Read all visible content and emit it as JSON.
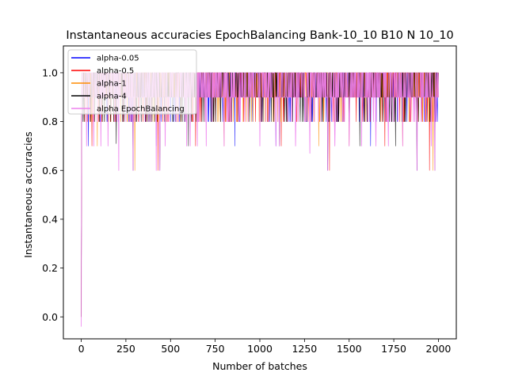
{
  "chart_data": {
    "type": "line",
    "title": "Instantaneous accuracies EpochBalancing Bank-10_10 B10 N 10_10",
    "xlabel": "Number of batches",
    "ylabel": "Instantaneous accuracies",
    "xlim": [
      -100,
      2100
    ],
    "ylim": [
      -0.09,
      1.11
    ],
    "xticks": [
      0,
      250,
      500,
      750,
      1000,
      1250,
      1500,
      1750,
      2000
    ],
    "xtick_labels": [
      "0",
      "250",
      "500",
      "750",
      "1000",
      "1250",
      "1500",
      "1750",
      "2000"
    ],
    "yticks": [
      0.0,
      0.2,
      0.4,
      0.6,
      0.8,
      1.0
    ],
    "ytick_labels": [
      "0.0",
      "0.2",
      "0.4",
      "0.6",
      "0.8",
      "1.0"
    ],
    "grid": false,
    "legend_position": "upper-left",
    "n_batches": 2000,
    "series": [
      {
        "name": "alpha-0.05",
        "color": "#0000ff",
        "initial": [
          [
            0,
            0.0
          ],
          [
            3,
            1.0
          ]
        ],
        "dips": [
          [
            40,
            0.7
          ],
          [
            130,
            0.8
          ],
          [
            290,
            0.6
          ],
          [
            420,
            0.7
          ],
          [
            590,
            0.8
          ],
          [
            860,
            0.7
          ],
          [
            1090,
            0.7
          ],
          [
            1380,
            0.6
          ],
          [
            1620,
            0.7
          ],
          [
            1880,
            0.6
          ]
        ]
      },
      {
        "name": "alpha-0.5",
        "color": "#ff0000",
        "initial": [
          [
            0,
            0.0
          ],
          [
            3,
            1.0
          ]
        ],
        "dips": [
          [
            60,
            0.7
          ],
          [
            200,
            0.8
          ],
          [
            430,
            0.6
          ],
          [
            640,
            0.7
          ],
          [
            910,
            0.8
          ],
          [
            1120,
            0.7
          ],
          [
            1390,
            0.6
          ],
          [
            1700,
            0.7
          ],
          [
            1950,
            0.6
          ]
        ]
      },
      {
        "name": "alpha-1",
        "color": "#ff8c00",
        "initial": [
          [
            0,
            0.0
          ],
          [
            3,
            1.0
          ]
        ],
        "dips": [
          [
            90,
            0.7
          ],
          [
            300,
            0.6
          ],
          [
            560,
            0.8
          ],
          [
            800,
            0.7
          ],
          [
            1050,
            0.8
          ],
          [
            1330,
            0.7
          ],
          [
            1500,
            0.7
          ],
          [
            1800,
            0.7
          ],
          [
            1970,
            0.6
          ]
        ]
      },
      {
        "name": "alpha-4",
        "color": "#000000",
        "initial": [
          [
            0,
            0.0
          ],
          [
            3,
            1.0
          ]
        ],
        "dips": [
          [
            195,
            0.71
          ],
          [
            290,
            0.6
          ],
          [
            440,
            0.6
          ],
          [
            600,
            0.7
          ],
          [
            1110,
            0.7
          ],
          [
            1380,
            0.6
          ],
          [
            1560,
            0.7
          ],
          [
            1760,
            0.7
          ],
          [
            1880,
            0.6
          ],
          [
            1980,
            0.6
          ]
        ]
      },
      {
        "name": "alpha EpochBalancing",
        "color": "#ee82ee",
        "initial": [
          [
            0,
            -0.04
          ],
          [
            3,
            1.0
          ]
        ],
        "dips": [
          [
            30,
            0.7
          ],
          [
            70,
            0.7
          ],
          [
            110,
            0.7
          ],
          [
            150,
            0.7
          ],
          [
            210,
            0.6
          ],
          [
            290,
            0.6
          ],
          [
            420,
            0.6
          ],
          [
            440,
            0.6
          ],
          [
            470,
            0.7
          ],
          [
            590,
            0.7
          ],
          [
            610,
            0.7
          ],
          [
            650,
            0.7
          ],
          [
            700,
            0.7
          ],
          [
            800,
            0.7
          ],
          [
            1000,
            0.7
          ],
          [
            1090,
            0.7
          ],
          [
            1110,
            0.7
          ],
          [
            1200,
            0.7
          ],
          [
            1280,
            0.67
          ],
          [
            1380,
            0.6
          ],
          [
            1420,
            0.7
          ],
          [
            1500,
            0.7
          ],
          [
            1570,
            0.7
          ],
          [
            1650,
            0.7
          ],
          [
            1720,
            0.7
          ],
          [
            1800,
            0.7
          ],
          [
            1880,
            0.6
          ],
          [
            1960,
            0.7
          ],
          [
            1980,
            0.6
          ]
        ]
      }
    ]
  }
}
